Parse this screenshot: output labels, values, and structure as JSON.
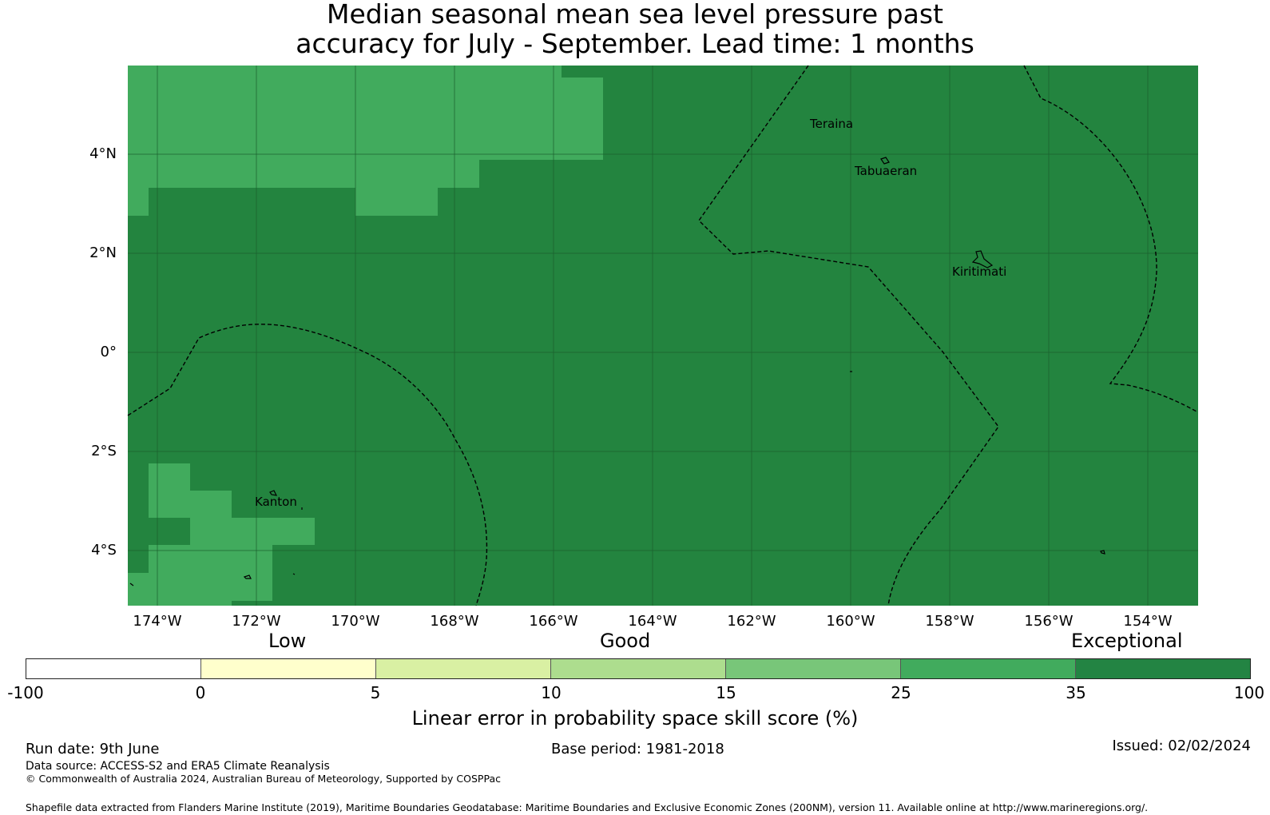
{
  "title": {
    "line1": "Median seasonal mean sea level pressure past",
    "line2": "accuracy for July - September. Lead time: 1 months"
  },
  "map": {
    "lat_labels": [
      "4°N",
      "2°N",
      "0°",
      "2°S",
      "4°S"
    ],
    "lon_labels": [
      "174°W",
      "172°W",
      "170°W",
      "168°W",
      "166°W",
      "164°W",
      "162°W",
      "160°W",
      "158°W",
      "156°W",
      "154°W"
    ],
    "places": [
      "Teraina",
      "Tabuaeran",
      "Kiritimati",
      "Kanton"
    ],
    "colors": {
      "exceptional": "#23843f",
      "cat_25_35": "#41ab5d",
      "grid": "#1a5e2c",
      "eez": "#000000"
    }
  },
  "legend": {
    "categories": [
      "Low",
      "Good",
      "Exceptional"
    ],
    "ticks": [
      "-100",
      "0",
      "5",
      "10",
      "15",
      "25",
      "35",
      "100"
    ],
    "colors": [
      "#ffffff",
      "#ffffcc",
      "#d9f0a3",
      "#addd8e",
      "#78c679",
      "#41ab5d",
      "#238443"
    ],
    "label": "Linear error in probability space skill score (%)"
  },
  "footer": {
    "run_date": "Run date: 9th June",
    "base_period": "Base period: 1981-2018",
    "issued": "Issued: 02/02/2024",
    "data_source": "Data source: ACCESS-S2 and ERA5 Climate Reanalysis",
    "copyright": "© Commonwealth of Australia 2024, Australian Bureau of Meteorology, Supported by COSPPac",
    "shapefile": "Shapefile data extracted from Flanders Marine Institute (2019), Maritime Boundaries Geodatabase: Maritime Boundaries and Exclusive Economic Zones (200NM), version 11. Available online at http://www.marineregions.org/."
  }
}
